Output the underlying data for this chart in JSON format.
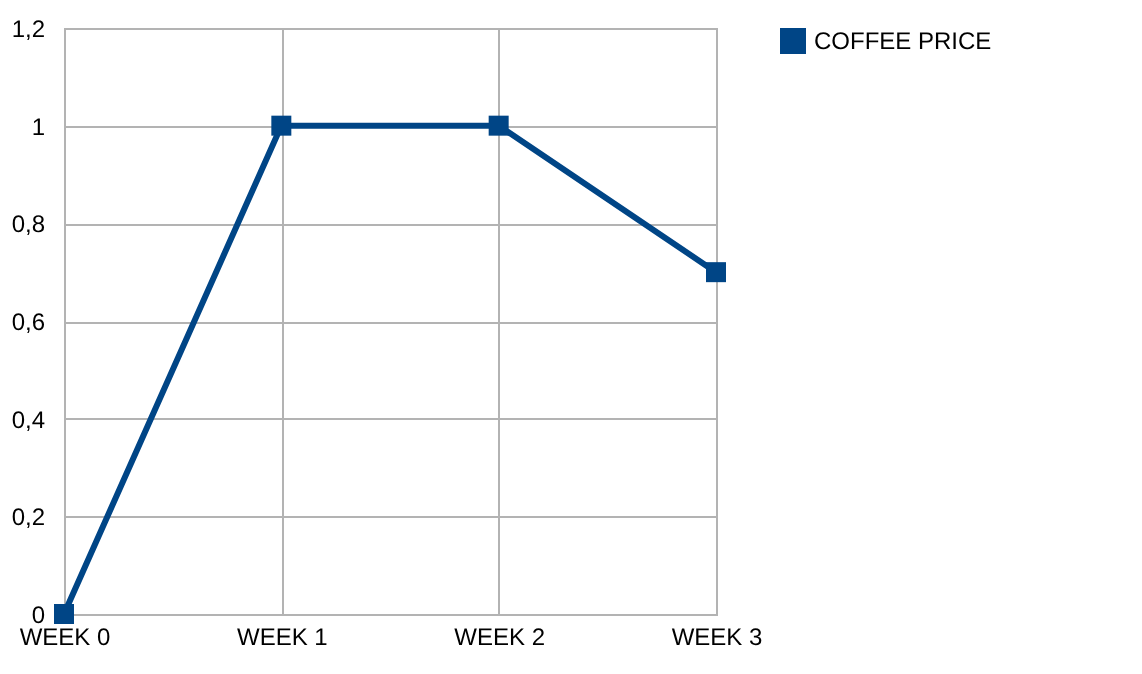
{
  "chart_data": {
    "type": "line",
    "categories": [
      "WEEK 0",
      "WEEK 1",
      "WEEK 2",
      "WEEK 3"
    ],
    "series": [
      {
        "name": "COFFEE PRICE",
        "color": "#004586",
        "values": [
          0,
          1,
          1,
          0.7
        ]
      }
    ],
    "ylim": [
      0,
      1.2
    ],
    "yticks": [
      0,
      {
        "value": 0.2,
        "label": "0,2"
      },
      {
        "value": 0.4,
        "label": "0,4"
      },
      {
        "value": 0.6,
        "label": "0,6"
      },
      {
        "value": 0.8,
        "label": "0,8"
      },
      1,
      {
        "value": 1.2,
        "label": "1,2"
      }
    ],
    "grid": true,
    "legend": "right",
    "marker": "square",
    "line_style": "solid"
  }
}
